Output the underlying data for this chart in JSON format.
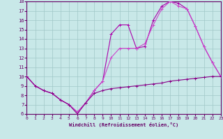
{
  "xlabel": "Windchill (Refroidissement éolien,°C)",
  "background_color": "#c8e8e8",
  "grid_color": "#a0c8c8",
  "line_color1": "#aa00aa",
  "line_color2": "#cc44cc",
  "line_color3": "#880088",
  "series1_x": [
    0,
    1,
    2,
    3,
    4,
    5,
    6,
    7,
    8,
    9,
    10,
    11,
    12,
    13,
    14,
    15,
    16,
    17,
    18,
    19,
    20,
    21,
    22,
    23
  ],
  "series1_y": [
    10,
    9,
    8.5,
    8.2,
    7.5,
    7.0,
    6.2,
    7.2,
    8.5,
    9.5,
    14.5,
    15.5,
    15.5,
    13.0,
    13.2,
    16.0,
    17.5,
    18.0,
    17.8,
    17.2,
    15.3,
    13.2,
    11.5,
    10.0
  ],
  "series2_x": [
    0,
    1,
    2,
    3,
    4,
    5,
    6,
    7,
    8,
    9,
    10,
    11,
    12,
    13,
    14,
    15,
    16,
    17,
    18,
    19,
    20,
    21,
    22,
    23
  ],
  "series2_y": [
    10,
    9,
    8.5,
    8.2,
    7.5,
    7.0,
    6.2,
    7.2,
    8.5,
    9.5,
    12.0,
    13.0,
    13.0,
    13.0,
    13.5,
    15.5,
    17.2,
    18.0,
    17.5,
    17.2,
    15.3,
    13.2,
    11.5,
    10.0
  ],
  "series3_x": [
    0,
    1,
    2,
    3,
    4,
    5,
    6,
    7,
    8,
    9,
    10,
    11,
    12,
    13,
    14,
    15,
    16,
    17,
    18,
    19,
    20,
    21,
    22,
    23
  ],
  "series3_y": [
    10,
    9.0,
    8.5,
    8.2,
    7.5,
    7.0,
    6.0,
    7.2,
    8.2,
    8.5,
    8.7,
    8.8,
    8.9,
    9.0,
    9.1,
    9.2,
    9.3,
    9.5,
    9.6,
    9.7,
    9.8,
    9.9,
    10.0,
    10.0
  ],
  "ylim": [
    6,
    18
  ],
  "xlim": [
    0,
    23
  ],
  "yticks": [
    6,
    7,
    8,
    9,
    10,
    11,
    12,
    13,
    14,
    15,
    16,
    17,
    18
  ],
  "xticks": [
    0,
    1,
    2,
    3,
    4,
    5,
    6,
    7,
    8,
    9,
    10,
    11,
    12,
    13,
    14,
    15,
    16,
    17,
    18,
    19,
    20,
    21,
    22,
    23
  ]
}
